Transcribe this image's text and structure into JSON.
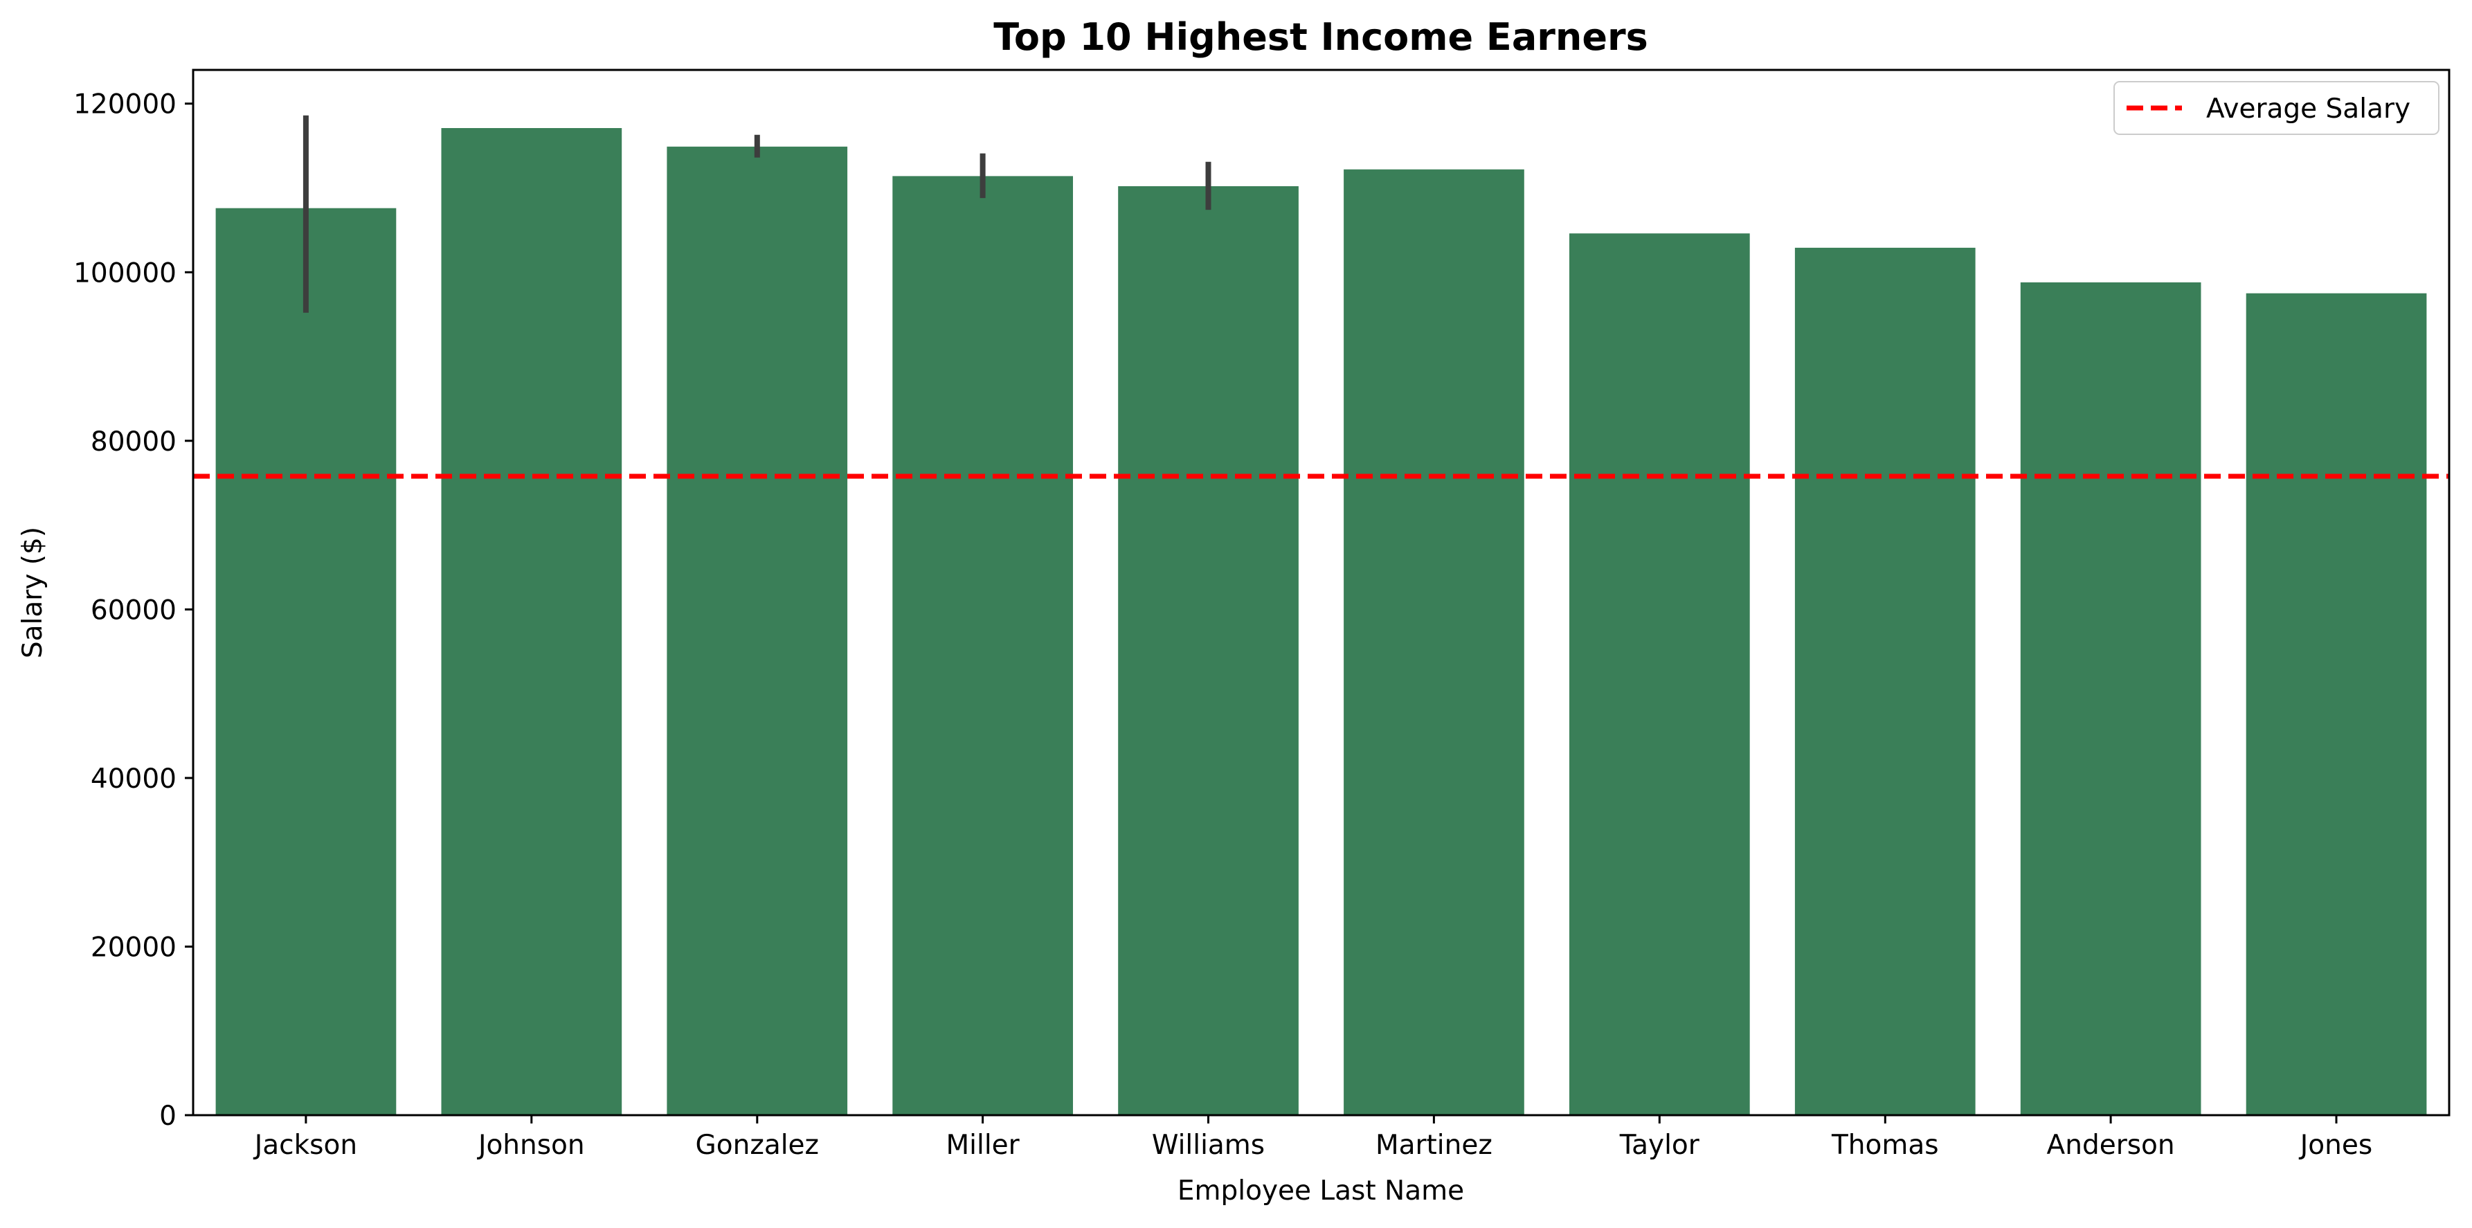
{
  "chart_data": {
    "type": "bar",
    "title": "Top 10 Highest Income Earners",
    "xlabel": "Employee Last Name",
    "ylabel": "Salary ($)",
    "categories": [
      "Jackson",
      "Johnson",
      "Gonzalez",
      "Miller",
      "Williams",
      "Martinez",
      "Taylor",
      "Thomas",
      "Anderson",
      "Jones"
    ],
    "values": [
      107600,
      117100,
      114900,
      111400,
      110200,
      112200,
      104600,
      102900,
      98800,
      97500
    ],
    "error_bars": [
      {
        "low": 95200,
        "high": 118600
      },
      null,
      {
        "low": 113600,
        "high": 116300
      },
      {
        "low": 108800,
        "high": 114100
      },
      {
        "low": 107400,
        "high": 113100
      },
      null,
      null,
      null,
      null,
      null
    ],
    "ylim": [
      0,
      124000
    ],
    "yticks": [
      0,
      20000,
      40000,
      60000,
      80000,
      100000,
      120000
    ],
    "reference_line": {
      "label": "Average Salary",
      "value": 75800,
      "color": "#ff0000",
      "style": "dashed"
    },
    "bar_color": "#3a7f58",
    "error_color": "#3d3d3d",
    "legend_position": "top-right",
    "grid": false
  }
}
